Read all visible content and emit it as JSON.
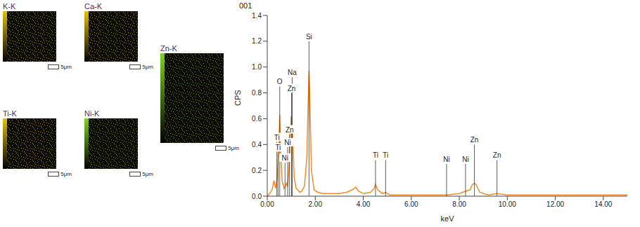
{
  "maps": [
    {
      "label": "K-K",
      "color": "#e6c200",
      "scale_bar": "5μm"
    },
    {
      "label": "Ca-K",
      "color": "#e6c200",
      "scale_bar": "5μm"
    },
    {
      "label": "Ti-K",
      "color": "#e6c200",
      "scale_bar": "5μm"
    },
    {
      "label": "Ni-K",
      "color": "#7cd41c",
      "scale_bar": "5μm"
    },
    {
      "label": "Zn-K",
      "color": "#7cd41c",
      "scale_bar": "5μm"
    }
  ],
  "chart_data": {
    "type": "line",
    "title": "001",
    "x_label": "keV",
    "y_label": "CPS",
    "color": "#f28c28",
    "x": [
      0.0,
      0.1,
      0.2,
      0.28,
      0.35,
      0.42,
      0.48,
      0.52,
      0.56,
      0.62,
      0.7,
      0.76,
      0.8,
      0.85,
      0.9,
      0.95,
      1.0,
      1.02,
      1.06,
      1.12,
      1.2,
      1.27,
      1.35,
      1.45,
      1.55,
      1.65,
      1.7,
      1.74,
      1.78,
      1.84,
      1.95,
      2.1,
      2.3,
      2.6,
      3.0,
      3.3,
      3.55,
      3.69,
      3.8,
      4.0,
      4.3,
      4.45,
      4.51,
      4.6,
      4.8,
      4.93,
      5.1,
      5.6,
      6.5,
      7.5,
      8.0,
      8.45,
      8.55,
      8.63,
      8.7,
      8.85,
      9.2,
      9.57,
      10.0,
      11,
      12,
      13,
      14,
      15
    ],
    "values": [
      0.0,
      0.02,
      0.05,
      0.12,
      0.06,
      0.15,
      0.35,
      0.63,
      0.35,
      0.12,
      0.06,
      0.08,
      0.1,
      0.08,
      0.2,
      0.45,
      0.62,
      0.6,
      0.45,
      0.15,
      0.06,
      0.05,
      0.03,
      0.04,
      0.08,
      0.3,
      0.7,
      0.97,
      0.7,
      0.2,
      0.05,
      0.03,
      0.02,
      0.02,
      0.02,
      0.03,
      0.05,
      0.07,
      0.04,
      0.02,
      0.03,
      0.06,
      0.09,
      0.05,
      0.02,
      0.03,
      0.01,
      0.01,
      0.01,
      0.01,
      0.02,
      0.05,
      0.09,
      0.1,
      0.09,
      0.03,
      0.01,
      0.02,
      0.01,
      0.01,
      0.01,
      0.01,
      0.01,
      0.01
    ],
    "xlim": [
      0,
      15
    ],
    "xticks": [
      {
        "value": 0,
        "label": "0.00"
      },
      {
        "value": 2,
        "label": "2.00"
      },
      {
        "value": 4,
        "label": "4.00"
      },
      {
        "value": 6,
        "label": "6.00"
      },
      {
        "value": 8,
        "label": "8.00"
      },
      {
        "value": 10,
        "label": "10.00"
      },
      {
        "value": 12,
        "label": "12.00"
      },
      {
        "value": 14,
        "label": "14.00"
      }
    ],
    "ylim": [
      0,
      1.4
    ],
    "yticks": [
      {
        "value": 0,
        "label": "0.0"
      },
      {
        "value": 0.2,
        "label": "0.2"
      },
      {
        "value": 0.4,
        "label": "0.4"
      },
      {
        "value": 0.6,
        "label": "0.6"
      },
      {
        "value": 0.8,
        "label": "0.8"
      },
      {
        "value": 1.0,
        "label": "1.0"
      },
      {
        "value": 1.2,
        "label": "1.2"
      },
      {
        "value": 1.4,
        "label": "1.4"
      }
    ],
    "grid": false,
    "annotations": [
      {
        "x": 1.04,
        "y": 0.92,
        "label": "Na"
      },
      {
        "x": 0.52,
        "y": 0.85,
        "label": "O"
      },
      {
        "x": 1.01,
        "y": 0.8,
        "label": "Zn"
      },
      {
        "x": 0.93,
        "y": 0.48,
        "label": "Zn"
      },
      {
        "x": 0.85,
        "y": 0.38,
        "label": "Ni"
      },
      {
        "x": 0.74,
        "y": 0.26,
        "label": "Ni"
      },
      {
        "x": 0.4,
        "y": 0.42,
        "label": "Ti"
      },
      {
        "x": 0.45,
        "y": 0.34,
        "label": "Ti"
      },
      {
        "x": 1.74,
        "y": 1.2,
        "label": "Si"
      },
      {
        "x": 4.51,
        "y": 0.28,
        "label": "Ti"
      },
      {
        "x": 4.93,
        "y": 0.28,
        "label": "Ti"
      },
      {
        "x": 7.47,
        "y": 0.25,
        "label": "Ni"
      },
      {
        "x": 8.26,
        "y": 0.25,
        "label": "Ni"
      },
      {
        "x": 8.63,
        "y": 0.4,
        "label": "Zn"
      },
      {
        "x": 9.57,
        "y": 0.28,
        "label": "Zn"
      }
    ]
  }
}
